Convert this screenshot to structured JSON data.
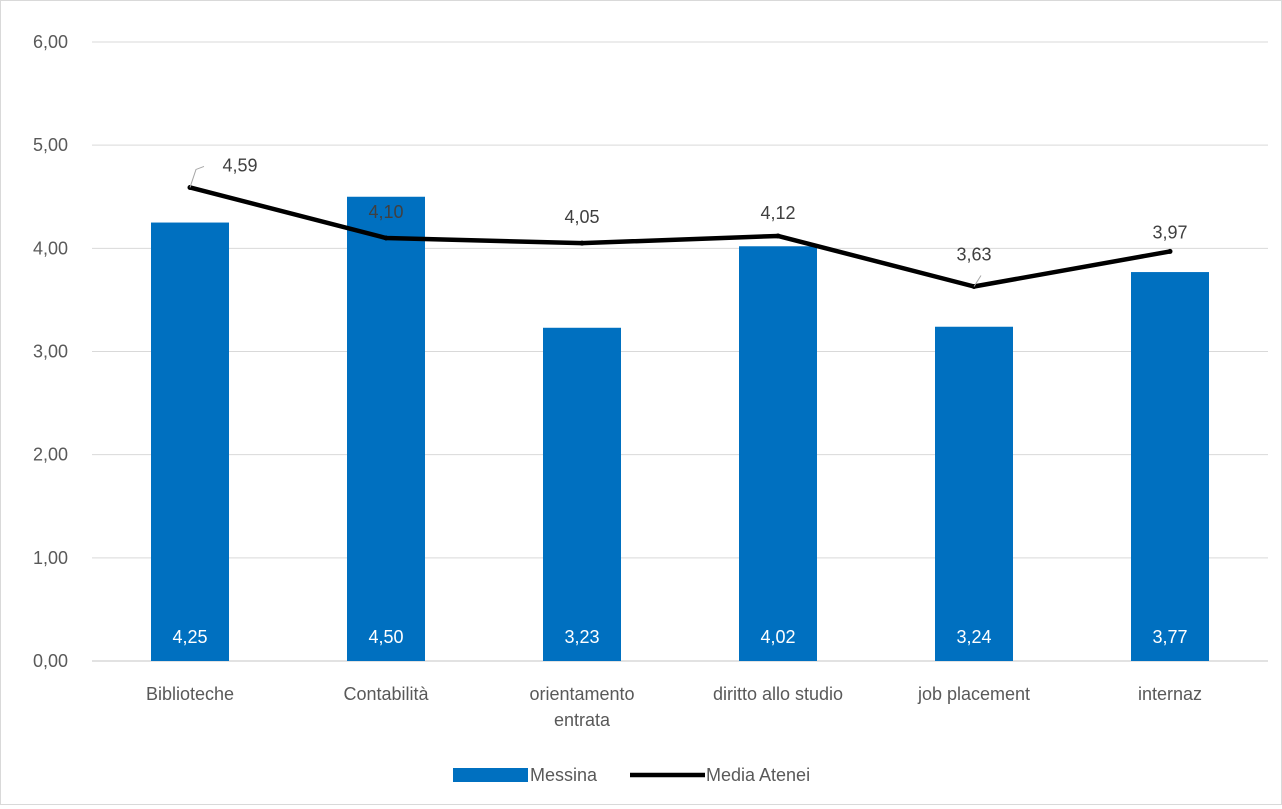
{
  "chart_data": {
    "type": "bar",
    "categories": [
      [
        "Biblioteche"
      ],
      [
        "Contabilità"
      ],
      [
        "orientamento",
        "entrata"
      ],
      [
        "diritto allo studio"
      ],
      [
        "job placement"
      ],
      [
        "internaz"
      ]
    ],
    "series": [
      {
        "name": "Messina",
        "type": "bar",
        "values": [
          4.25,
          4.5,
          3.23,
          4.02,
          3.24,
          3.77
        ],
        "labels": [
          "4,25",
          "4,50",
          "3,23",
          "4,02",
          "3,24",
          "3,77"
        ],
        "color": "#0070c0",
        "label_color": "#ffffff"
      },
      {
        "name": "Media Atenei",
        "type": "line",
        "values": [
          4.59,
          4.1,
          4.05,
          4.12,
          3.63,
          3.97
        ],
        "labels": [
          "4,59",
          "4,10",
          "4,05",
          "4,12",
          "3,63",
          "3,97"
        ],
        "color": "#000000"
      }
    ],
    "ylim": [
      0,
      6
    ],
    "y_ticks": [
      "0,00",
      "1,00",
      "2,00",
      "3,00",
      "4,00",
      "5,00",
      "6,00"
    ],
    "grid": true,
    "legend": "bottom-center",
    "title": "",
    "xlabel": "",
    "ylabel": ""
  }
}
